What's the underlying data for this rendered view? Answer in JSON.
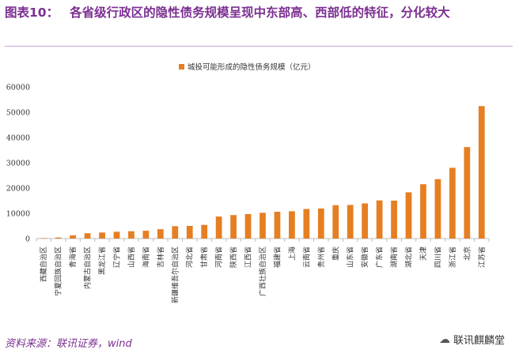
{
  "header": {
    "label": "图表10：",
    "text": "各省级行政区的隐性债务规模呈现中东部高、西部低的特征，分化较大"
  },
  "footer": {
    "source": "资料来源：联讯证券，wind",
    "watermark": "联讯麒麟堂",
    "watermark_icon": "wechat-icon"
  },
  "colors": {
    "bar": "#e67e22",
    "accent": "#7b2f91"
  },
  "chart_data": {
    "type": "bar",
    "legend_position": "top-center",
    "grid": false,
    "ylim": [
      0,
      60000
    ],
    "yticks": [
      0,
      10000,
      20000,
      30000,
      40000,
      50000,
      60000
    ],
    "categories": [
      "西藏自治区",
      "宁夏回族自治区",
      "青海省",
      "内蒙古自治区",
      "黑龙江省",
      "辽宁省",
      "山西省",
      "海南省",
      "吉林省",
      "新疆维吾尔自治区",
      "河北省",
      "甘肃省",
      "河南省",
      "陕西省",
      "江西省",
      "广西壮族自治区",
      "福建省",
      "上海",
      "云南省",
      "贵州省",
      "重庆",
      "山东省",
      "安徽省",
      "广东省",
      "湖南省",
      "湖北省",
      "天津",
      "四川省",
      "浙江省",
      "北京",
      "江苏省"
    ],
    "series": [
      {
        "name": "城投可能形成的隐性债务规模（亿元）",
        "values": [
          200,
          400,
          1300,
          2100,
          2400,
          2700,
          2900,
          3100,
          3700,
          4900,
          5000,
          5400,
          8700,
          9300,
          9700,
          10200,
          10600,
          10800,
          11700,
          11900,
          13200,
          13300,
          13900,
          15100,
          15000,
          18300,
          21500,
          23500,
          28000,
          36200,
          52400
        ]
      }
    ]
  }
}
